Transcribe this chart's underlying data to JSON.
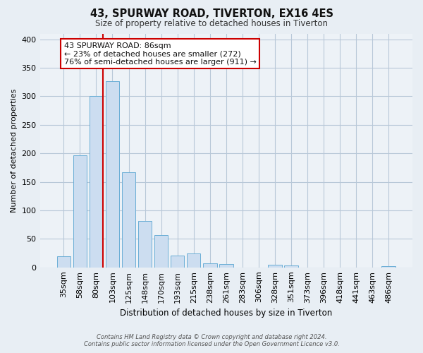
{
  "title": "43, SPURWAY ROAD, TIVERTON, EX16 4ES",
  "subtitle": "Size of property relative to detached houses in Tiverton",
  "xlabel": "Distribution of detached houses by size in Tiverton",
  "ylabel": "Number of detached properties",
  "bar_labels": [
    "35sqm",
    "58sqm",
    "80sqm",
    "103sqm",
    "125sqm",
    "148sqm",
    "170sqm",
    "193sqm",
    "215sqm",
    "238sqm",
    "261sqm",
    "283sqm",
    "306sqm",
    "328sqm",
    "351sqm",
    "373sqm",
    "396sqm",
    "418sqm",
    "441sqm",
    "463sqm",
    "486sqm"
  ],
  "bar_values": [
    20,
    197,
    300,
    327,
    167,
    82,
    57,
    21,
    24,
    7,
    6,
    0,
    0,
    5,
    4,
    0,
    0,
    0,
    0,
    0,
    2
  ],
  "bar_color": "#ccddf0",
  "bar_edge_color": "#6aaed6",
  "ylim": [
    0,
    410
  ],
  "yticks": [
    0,
    50,
    100,
    150,
    200,
    250,
    300,
    350,
    400
  ],
  "annotation_title": "43 SPURWAY ROAD: 86sqm",
  "annotation_line1": "← 23% of detached houses are smaller (272)",
  "annotation_line2": "76% of semi-detached houses are larger (911) →",
  "annotation_box_color": "#ffffff",
  "annotation_box_edge": "#cc0000",
  "vline_color": "#cc0000",
  "footer1": "Contains HM Land Registry data © Crown copyright and database right 2024.",
  "footer2": "Contains public sector information licensed under the Open Government Licence v3.0.",
  "bg_color": "#e8eef4",
  "plot_bg_color": "#edf2f7",
  "grid_color": "#b8c8d8"
}
